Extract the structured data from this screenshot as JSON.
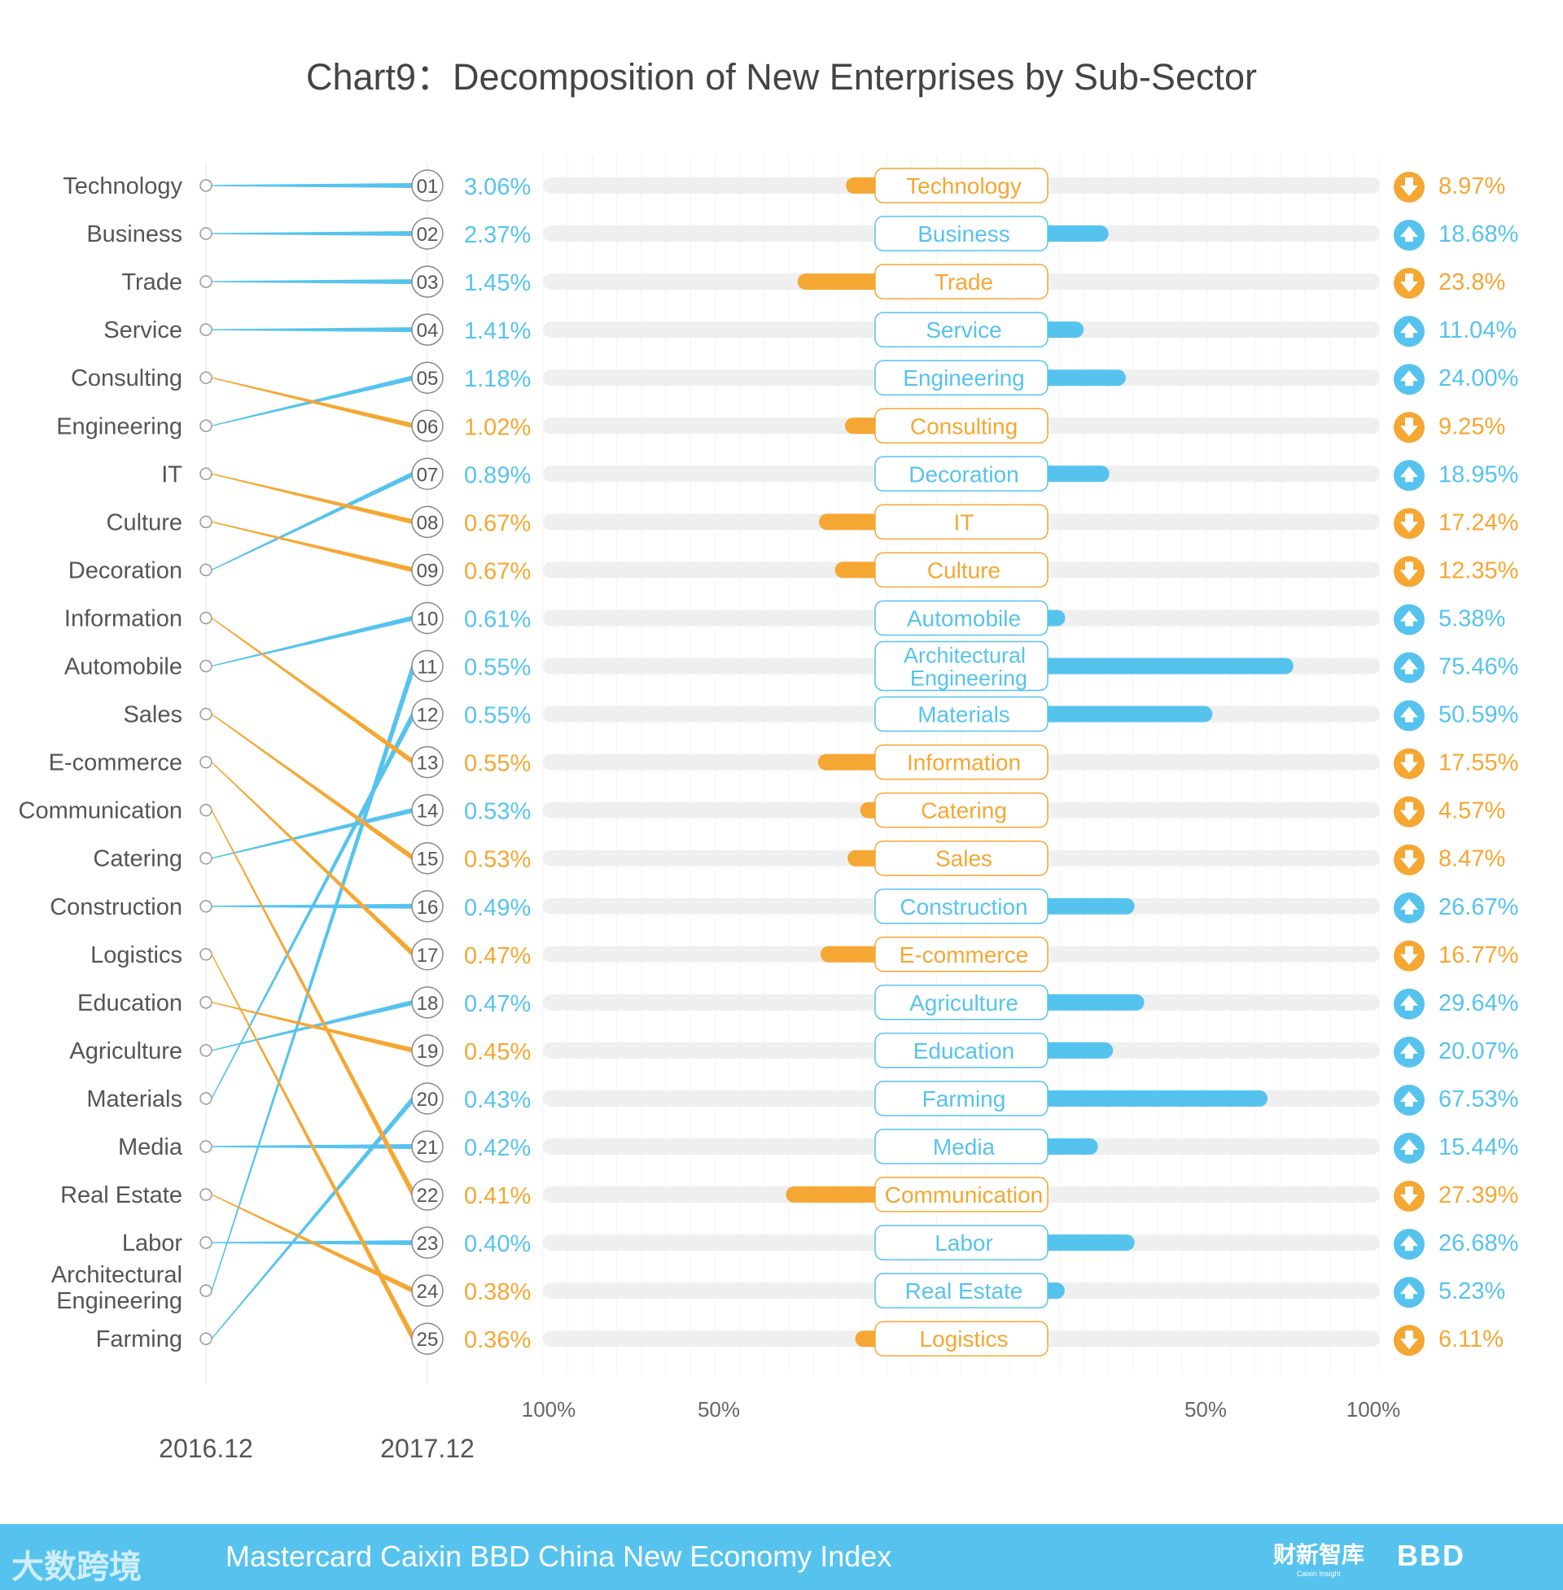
{
  "colors": {
    "blue": "#56c3ee",
    "orange": "#f5a733",
    "track": "#efefef",
    "label": "#555555"
  },
  "chart_data": {
    "type": "slope+diverging-bar",
    "title": "Chart9：Decomposition of New Enterprises by Sub-Sector",
    "period_labels": [
      "2016.12",
      "2017.12"
    ],
    "axis_ticks_left": [
      "100%",
      "50%"
    ],
    "axis_ticks_right": [
      "50%",
      "100%"
    ],
    "xlim_percent": [
      -100,
      100
    ],
    "ranking_2016": [
      "Technology",
      "Business",
      "Trade",
      "Service",
      "Consulting",
      "Engineering",
      "IT",
      "Culture",
      "Decoration",
      "Information",
      "Automobile",
      "Sales",
      "E-commerce",
      "Communication",
      "Catering",
      "Construction",
      "Logistics",
      "Education",
      "Agriculture",
      "Materials",
      "Media",
      "Real Estate",
      "Labor",
      "Architectural Engineering",
      "Farming"
    ],
    "rows": [
      {
        "rank": "01",
        "name": "Technology",
        "share": "3.06%",
        "change": -8.97,
        "change_label": "8.97%"
      },
      {
        "rank": "02",
        "name": "Business",
        "share": "2.37%",
        "change": 18.68,
        "change_label": "18.68%"
      },
      {
        "rank": "03",
        "name": "Trade",
        "share": "1.45%",
        "change": -23.8,
        "change_label": "23.8%"
      },
      {
        "rank": "04",
        "name": "Service",
        "share": "1.41%",
        "change": 11.04,
        "change_label": "11.04%"
      },
      {
        "rank": "05",
        "name": "Engineering",
        "share": "1.18%",
        "change": 24.0,
        "change_label": "24.00%"
      },
      {
        "rank": "06",
        "name": "Consulting",
        "share": "1.02%",
        "change": -9.25,
        "change_label": "9.25%"
      },
      {
        "rank": "07",
        "name": "Decoration",
        "share": "0.89%",
        "change": 18.95,
        "change_label": "18.95%"
      },
      {
        "rank": "08",
        "name": "IT",
        "share": "0.67%",
        "change": -17.24,
        "change_label": "17.24%"
      },
      {
        "rank": "09",
        "name": "Culture",
        "share": "0.67%",
        "change": -12.35,
        "change_label": "12.35%"
      },
      {
        "rank": "10",
        "name": "Automobile",
        "share": "0.61%",
        "change": 5.38,
        "change_label": "5.38%"
      },
      {
        "rank": "11",
        "name": "Architectural Engineering",
        "share": "0.55%",
        "change": 75.46,
        "change_label": "75.46%"
      },
      {
        "rank": "12",
        "name": "Materials",
        "share": "0.55%",
        "change": 50.59,
        "change_label": "50.59%"
      },
      {
        "rank": "13",
        "name": "Information",
        "share": "0.55%",
        "change": -17.55,
        "change_label": "17.55%"
      },
      {
        "rank": "14",
        "name": "Catering",
        "share": "0.53%",
        "change": -4.57,
        "change_label": "4.57%"
      },
      {
        "rank": "15",
        "name": "Sales",
        "share": "0.53%",
        "change": -8.47,
        "change_label": "8.47%"
      },
      {
        "rank": "16",
        "name": "Construction",
        "share": "0.49%",
        "change": 26.67,
        "change_label": "26.67%"
      },
      {
        "rank": "17",
        "name": "E-commerce",
        "share": "0.47%",
        "change": -16.77,
        "change_label": "16.77%"
      },
      {
        "rank": "18",
        "name": "Agriculture",
        "share": "0.47%",
        "change": 29.64,
        "change_label": "29.64%"
      },
      {
        "rank": "19",
        "name": "Education",
        "share": "0.45%",
        "change": 20.07,
        "change_label": "20.07%"
      },
      {
        "rank": "20",
        "name": "Farming",
        "share": "0.43%",
        "change": 67.53,
        "change_label": "67.53%"
      },
      {
        "rank": "21",
        "name": "Media",
        "share": "0.42%",
        "change": 15.44,
        "change_label": "15.44%"
      },
      {
        "rank": "22",
        "name": "Communication",
        "share": "0.41%",
        "change": -27.39,
        "change_label": "27.39%"
      },
      {
        "rank": "23",
        "name": "Labor",
        "share": "0.40%",
        "change": 26.68,
        "change_label": "26.68%"
      },
      {
        "rank": "24",
        "name": "Real Estate",
        "share": "0.38%",
        "change": 5.23,
        "change_label": "5.23%"
      },
      {
        "rank": "25",
        "name": "Logistics",
        "share": "0.36%",
        "change": -6.11,
        "change_label": "6.11%"
      }
    ]
  },
  "footer": {
    "logo_text": "大数跨境",
    "title": "Mastercard Caixin BBD China New Economy Index",
    "caixin_cn": "财新智库",
    "caixin_en": "Caixin Insight",
    "bbd": "BBD"
  }
}
